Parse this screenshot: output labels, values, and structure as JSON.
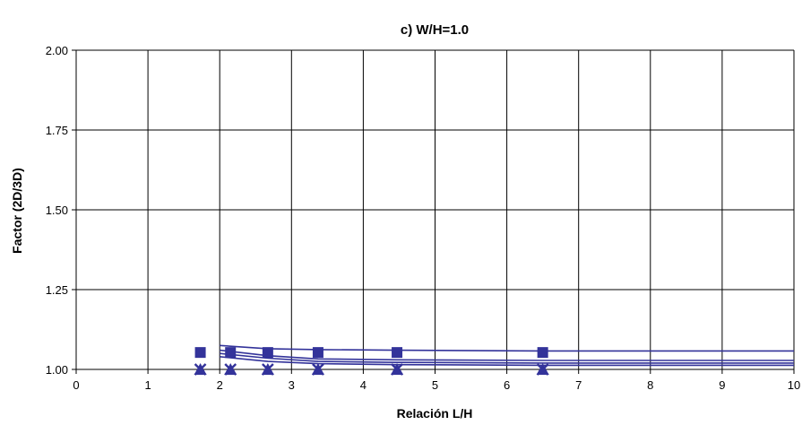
{
  "chart_data": {
    "type": "line",
    "title": "c) W/H=1.0",
    "xlabel": "Relación L/H",
    "ylabel": "Factor (2D/3D)",
    "xlim": [
      0,
      10
    ],
    "ylim": [
      1.0,
      2.0
    ],
    "x_ticks": [
      "0",
      "1",
      "2",
      "3",
      "4",
      "5",
      "6",
      "7",
      "8",
      "9",
      "10"
    ],
    "y_ticks": [
      "1.00",
      "1.25",
      "1.50",
      "1.75",
      "2.00"
    ],
    "grid": true,
    "legend": "none",
    "series_color": "#33339a",
    "series": [
      {
        "marker": "square",
        "x": [
          1.73,
          2.15,
          2.67,
          3.37,
          4.47,
          6.5
        ],
        "y": [
          1.053,
          1.053,
          1.053,
          1.053,
          1.053,
          1.053
        ],
        "line_x": [
          2.0,
          2.67,
          3.37,
          4.47,
          6.5,
          10
        ],
        "line_y": [
          1.075,
          1.065,
          1.062,
          1.06,
          1.058,
          1.058
        ]
      },
      {
        "marker": "triangle",
        "x": [
          1.73,
          2.15,
          2.67,
          3.37,
          4.47,
          6.5
        ],
        "y": [
          1.0,
          1.0,
          1.0,
          1.0,
          1.0,
          1.0
        ],
        "line_x": [
          2.0,
          2.67,
          3.37,
          4.47,
          6.5,
          10
        ],
        "line_y": [
          1.06,
          1.043,
          1.033,
          1.03,
          1.028,
          1.028
        ]
      },
      {
        "marker": "cross",
        "x": [
          1.73,
          2.15,
          2.67,
          3.37,
          4.47,
          6.5
        ],
        "y": [
          1.0,
          1.0,
          1.0,
          1.0,
          1.0,
          1.0
        ],
        "line_x": [
          2.0,
          2.67,
          3.37,
          4.47,
          6.5,
          10
        ],
        "line_y": [
          1.05,
          1.035,
          1.025,
          1.022,
          1.02,
          1.02
        ]
      },
      {
        "marker": "none",
        "x": [],
        "y": [],
        "line_x": [
          2.0,
          2.67,
          3.37,
          4.47,
          6.5,
          10
        ],
        "line_y": [
          1.04,
          1.025,
          1.018,
          1.015,
          1.013,
          1.013
        ]
      }
    ]
  }
}
